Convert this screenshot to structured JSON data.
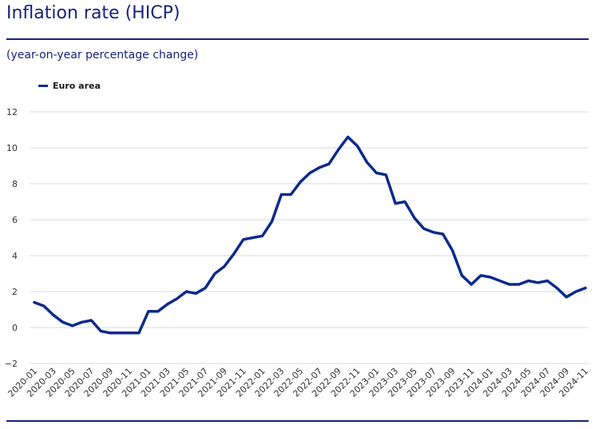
{
  "header": {
    "title": "Inflation rate (HICP)",
    "subtitle": "(year-on-year percentage change)"
  },
  "legend": {
    "label": "Euro area",
    "color": "#0d2a8c"
  },
  "chart_data": {
    "type": "line",
    "title": "Inflation rate (HICP)",
    "subtitle": "(year-on-year percentage change)",
    "ylim": [
      -2,
      12
    ],
    "yticks": [
      -2,
      0,
      2,
      4,
      6,
      8,
      10,
      12
    ],
    "grid": true,
    "legend_position": "top-left",
    "x": [
      "2020-01",
      "2020-02",
      "2020-03",
      "2020-04",
      "2020-05",
      "2020-06",
      "2020-07",
      "2020-08",
      "2020-09",
      "2020-10",
      "2020-11",
      "2020-12",
      "2021-01",
      "2021-02",
      "2021-03",
      "2021-04",
      "2021-05",
      "2021-06",
      "2021-07",
      "2021-08",
      "2021-09",
      "2021-10",
      "2021-11",
      "2021-12",
      "2022-01",
      "2022-02",
      "2022-03",
      "2022-04",
      "2022-05",
      "2022-06",
      "2022-07",
      "2022-08",
      "2022-09",
      "2022-10",
      "2022-11",
      "2022-12",
      "2023-01",
      "2023-02",
      "2023-03",
      "2023-04",
      "2023-05",
      "2023-06",
      "2023-07",
      "2023-08",
      "2023-09",
      "2023-10",
      "2023-11",
      "2023-12",
      "2024-01",
      "2024-02",
      "2024-03",
      "2024-04",
      "2024-05",
      "2024-06",
      "2024-07",
      "2024-08",
      "2024-09",
      "2024-10",
      "2024-11"
    ],
    "xticklabels": [
      "2020-01",
      "2020-03",
      "2020-05",
      "2020-07",
      "2020-09",
      "2020-11",
      "2021-01",
      "2021-03",
      "2021-05",
      "2021-07",
      "2021-09",
      "2021-11",
      "2022-01",
      "2022-03",
      "2022-05",
      "2022-07",
      "2022-09",
      "2022-11",
      "2023-01",
      "2023-03",
      "2023-05",
      "2023-07",
      "2023-09",
      "2023-11",
      "2024-01",
      "2024-03",
      "2024-05",
      "2024-07",
      "2024-09",
      "2024-11"
    ],
    "series": [
      {
        "name": "Euro area",
        "color": "#0d2a8c",
        "values": [
          1.4,
          1.2,
          0.7,
          0.3,
          0.1,
          0.3,
          0.4,
          -0.2,
          -0.3,
          -0.3,
          -0.3,
          -0.3,
          0.9,
          0.9,
          1.3,
          1.6,
          2.0,
          1.9,
          2.2,
          3.0,
          3.4,
          4.1,
          4.9,
          5.0,
          5.1,
          5.9,
          7.4,
          7.4,
          8.1,
          8.6,
          8.9,
          9.1,
          9.9,
          10.6,
          10.1,
          9.2,
          8.6,
          8.5,
          6.9,
          7.0,
          6.1,
          5.5,
          5.3,
          5.2,
          4.3,
          2.9,
          2.4,
          2.9,
          2.8,
          2.6,
          2.4,
          2.4,
          2.6,
          2.5,
          2.6,
          2.2,
          1.7,
          2.0,
          2.2
        ]
      }
    ]
  }
}
